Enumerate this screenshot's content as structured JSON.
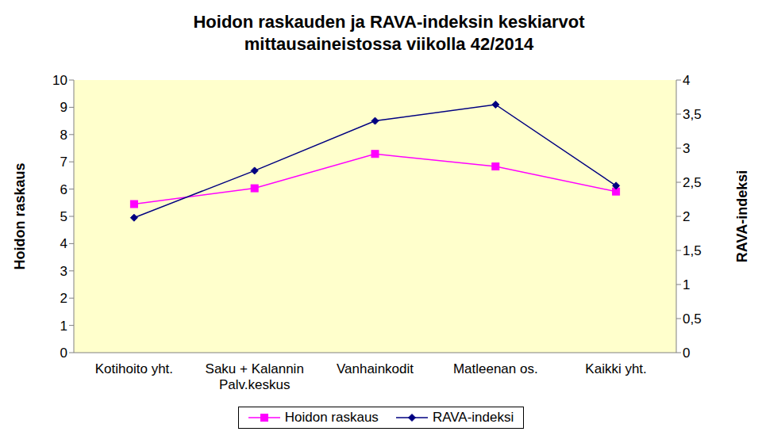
{
  "chart_data": {
    "type": "line",
    "title": "Hoidon raskauden ja RAVA-indeksin keskiarvot mittausaineistossa viikolla 42/2014",
    "categories": [
      "Kotihoito yht.",
      "Saku + Kalannin Palv.keskus",
      "Vanhainkodit",
      "Matleenan os.",
      "Kaikki yht."
    ],
    "series": [
      {
        "name": "Hoidon raskaus",
        "color": "#ff00ff",
        "marker": "square",
        "values": [
          5.45,
          6.03,
          7.29,
          6.83,
          5.91
        ]
      },
      {
        "name": "RAVA-indeksi",
        "color": "#000080",
        "marker": "diamond",
        "axis": "y2",
        "values": [
          1.98,
          2.67,
          3.4,
          3.64,
          2.45
        ]
      }
    ],
    "y_label": "Hoidon raskaus",
    "y2_label": "RAVA-indeksi",
    "ylim": [
      0,
      10
    ],
    "yticks": [
      0,
      1,
      2,
      3,
      4,
      5,
      6,
      7,
      8,
      9,
      10
    ],
    "y2lim": [
      0,
      4
    ],
    "y2ticks": [
      0,
      {
        "value": 0.5,
        "label": "0,5"
      },
      1,
      {
        "value": 1.5,
        "label": "1,5"
      },
      2,
      {
        "value": 2.5,
        "label": "2,5"
      },
      3,
      {
        "value": 3.5,
        "label": "3,5"
      },
      4
    ],
    "grid": false,
    "legend": "bottom"
  }
}
